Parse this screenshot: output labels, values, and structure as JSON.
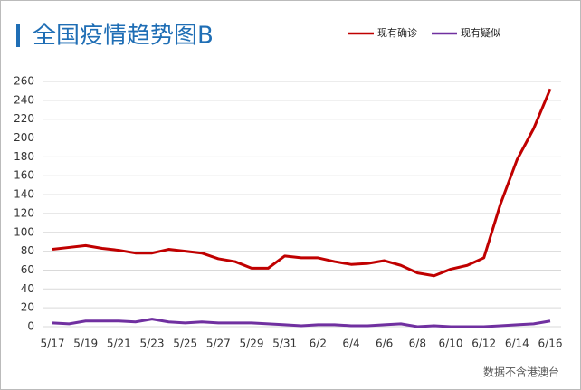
{
  "chart_data": {
    "type": "line",
    "title": "全国疫情趋势图B",
    "source": "数据不含港澳台",
    "categories": [
      "5/17",
      null,
      "5/19",
      null,
      "5/21",
      null,
      "5/23",
      null,
      "5/25",
      null,
      "5/27",
      null,
      "5/29",
      null,
      "5/31",
      null,
      "6/2",
      null,
      "6/4",
      null,
      "6/6",
      null,
      "6/8",
      null,
      "6/10",
      null,
      "6/12",
      null,
      "6/14",
      null,
      "6/16"
    ],
    "series": [
      {
        "name": "现有确诊",
        "color": "#c00000",
        "values": [
          82,
          84,
          86,
          83,
          81,
          78,
          78,
          82,
          80,
          78,
          72,
          69,
          62,
          62,
          75,
          73,
          73,
          69,
          66,
          67,
          70,
          65,
          57,
          54,
          61,
          65,
          73,
          130,
          177,
          210,
          252
        ]
      },
      {
        "name": "现有疑似",
        "color": "#7030a0",
        "values": [
          4,
          3,
          6,
          6,
          6,
          5,
          8,
          5,
          4,
          5,
          4,
          4,
          4,
          3,
          2,
          1,
          2,
          2,
          1,
          1,
          2,
          3,
          0,
          1,
          0,
          0,
          0,
          1,
          2,
          3,
          6
        ]
      }
    ],
    "ylim": [
      0,
      260
    ],
    "yticks": [
      0,
      20,
      40,
      60,
      80,
      100,
      120,
      140,
      160,
      180,
      200,
      220,
      240,
      260
    ],
    "grid": true,
    "legend": "top-right"
  }
}
